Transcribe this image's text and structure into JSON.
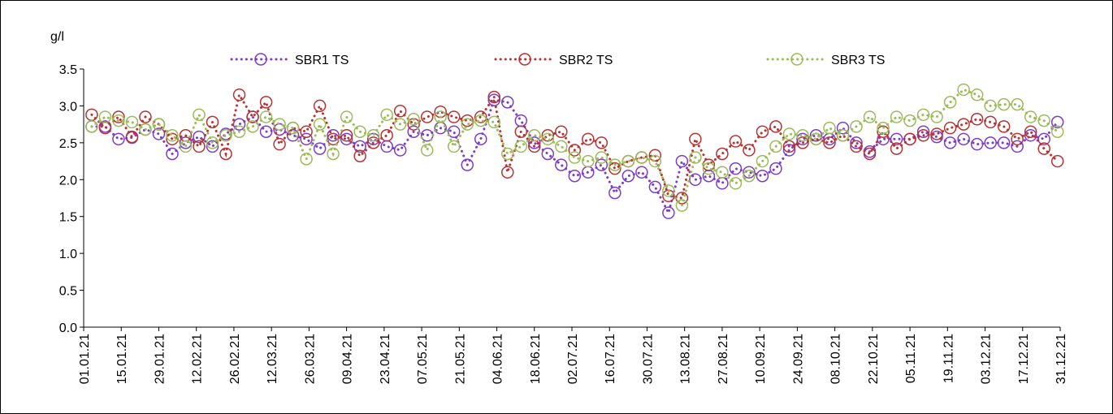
{
  "chart_data": {
    "type": "line",
    "y_label": "g/l",
    "x": [
      "04.01.21",
      "09.01.21",
      "14.01.21",
      "19.01.21",
      "24.01.21",
      "29.01.21",
      "03.02.21",
      "08.02.21",
      "13.02.21",
      "18.02.21",
      "23.02.21",
      "28.02.21",
      "05.03.21",
      "10.03.21",
      "15.03.21",
      "20.03.21",
      "25.03.21",
      "30.03.21",
      "04.04.21",
      "09.04.21",
      "14.04.21",
      "19.04.21",
      "24.04.21",
      "29.04.21",
      "04.05.21",
      "09.05.21",
      "14.05.21",
      "19.05.21",
      "24.05.21",
      "29.05.21",
      "03.06.21",
      "08.06.21",
      "13.06.21",
      "18.06.21",
      "23.06.21",
      "28.06.21",
      "03.07.21",
      "08.07.21",
      "13.07.21",
      "18.07.21",
      "23.07.21",
      "28.07.21",
      "02.08.21",
      "07.08.21",
      "12.08.21",
      "17.08.21",
      "22.08.21",
      "27.08.21",
      "01.09.21",
      "06.09.21",
      "11.09.21",
      "16.09.21",
      "21.09.21",
      "26.09.21",
      "01.10.21",
      "06.10.21",
      "11.10.21",
      "16.10.21",
      "21.10.21",
      "26.10.21",
      "31.10.21",
      "05.11.21",
      "10.11.21",
      "15.11.21",
      "20.11.21",
      "25.11.21",
      "30.11.21",
      "05.12.21",
      "10.12.21",
      "15.12.21",
      "20.12.21",
      "25.12.21",
      "30.12.21"
    ],
    "series": [
      {
        "name": "SBR1 TS",
        "color": "#7d3cc8",
        "values": [
          2.72,
          2.72,
          2.55,
          2.57,
          2.68,
          2.62,
          2.35,
          2.5,
          2.58,
          2.45,
          2.62,
          2.75,
          2.85,
          2.65,
          2.68,
          2.6,
          2.55,
          2.42,
          2.6,
          2.55,
          2.45,
          2.55,
          2.45,
          2.4,
          2.65,
          2.6,
          2.7,
          2.65,
          2.2,
          2.55,
          3.08,
          3.05,
          2.8,
          2.5,
          2.35,
          2.2,
          2.05,
          2.1,
          2.2,
          1.82,
          2.05,
          2.1,
          1.9,
          1.55,
          2.25,
          2.0,
          2.05,
          1.95,
          2.15,
          2.1,
          2.05,
          2.15,
          2.4,
          2.55,
          2.6,
          2.55,
          2.7,
          2.5,
          2.38,
          2.55,
          2.55,
          2.55,
          2.65,
          2.58,
          2.5,
          2.55,
          2.48,
          2.5,
          2.5,
          2.45,
          2.6,
          2.55,
          2.78
        ]
      },
      {
        "name": "SBR2 TS",
        "color": "#b83232",
        "values": [
          2.88,
          2.7,
          2.85,
          2.58,
          2.85,
          2.75,
          2.55,
          2.6,
          2.45,
          2.78,
          2.35,
          3.15,
          2.85,
          3.05,
          2.48,
          2.7,
          2.65,
          3.0,
          2.55,
          2.6,
          2.32,
          2.5,
          2.6,
          2.93,
          2.75,
          2.85,
          2.92,
          2.85,
          2.8,
          2.85,
          3.12,
          2.1,
          2.65,
          2.45,
          2.6,
          2.65,
          2.4,
          2.55,
          2.5,
          2.15,
          2.25,
          2.3,
          2.33,
          1.78,
          1.75,
          2.55,
          2.2,
          2.35,
          2.52,
          2.4,
          2.65,
          2.72,
          2.45,
          2.5,
          2.55,
          2.5,
          2.6,
          2.45,
          2.35,
          2.65,
          2.42,
          2.55,
          2.6,
          2.62,
          2.7,
          2.75,
          2.82,
          2.78,
          2.72,
          2.55,
          2.65,
          2.42,
          2.25
        ]
      },
      {
        "name": "SBR3 TS",
        "color": "#9bbb59",
        "values": [
          2.72,
          2.85,
          2.8,
          2.78,
          2.68,
          2.75,
          2.6,
          2.45,
          2.88,
          2.5,
          2.6,
          2.65,
          2.72,
          2.85,
          2.75,
          2.7,
          2.28,
          2.75,
          2.35,
          2.85,
          2.65,
          2.6,
          2.88,
          2.75,
          2.82,
          2.4,
          2.85,
          2.45,
          2.75,
          2.8,
          2.78,
          2.35,
          2.45,
          2.6,
          2.55,
          2.45,
          2.3,
          2.25,
          2.3,
          2.2,
          2.25,
          2.3,
          2.25,
          1.85,
          1.65,
          2.3,
          2.15,
          2.1,
          1.95,
          2.05,
          2.25,
          2.45,
          2.62,
          2.6,
          2.55,
          2.7,
          2.6,
          2.72,
          2.85,
          2.7,
          2.85,
          2.8,
          2.88,
          2.85,
          3.05,
          3.22,
          3.15,
          3.0,
          3.02,
          3.02,
          2.85,
          2.8,
          2.65
        ]
      }
    ],
    "xlim": [
      "01.01.21",
      "31.12.21"
    ],
    "xticks": [
      "01.01.21",
      "15.01.21",
      "29.01.21",
      "12.02.21",
      "26.02.21",
      "12.03.21",
      "26.03.21",
      "09.04.21",
      "23.04.21",
      "07.05.21",
      "21.05.21",
      "04.06.21",
      "18.06.21",
      "02.07.21",
      "16.07.21",
      "30.07.21",
      "13.08.21",
      "27.08.21",
      "10.09.21",
      "24.09.21",
      "08.10.21",
      "22.10.21",
      "05.11.21",
      "19.11.21",
      "03.12.21",
      "17.12.21",
      "31.12.21"
    ],
    "ylim": [
      0,
      3.5
    ],
    "yticks": [
      {
        "value": 0,
        "label": "0.0"
      },
      0.5,
      {
        "value": 1,
        "label": "1.0"
      },
      1.5,
      {
        "value": 2,
        "label": "2.0"
      },
      2.5,
      {
        "value": 3,
        "label": "3.0"
      },
      3.5
    ],
    "legend": "top"
  }
}
